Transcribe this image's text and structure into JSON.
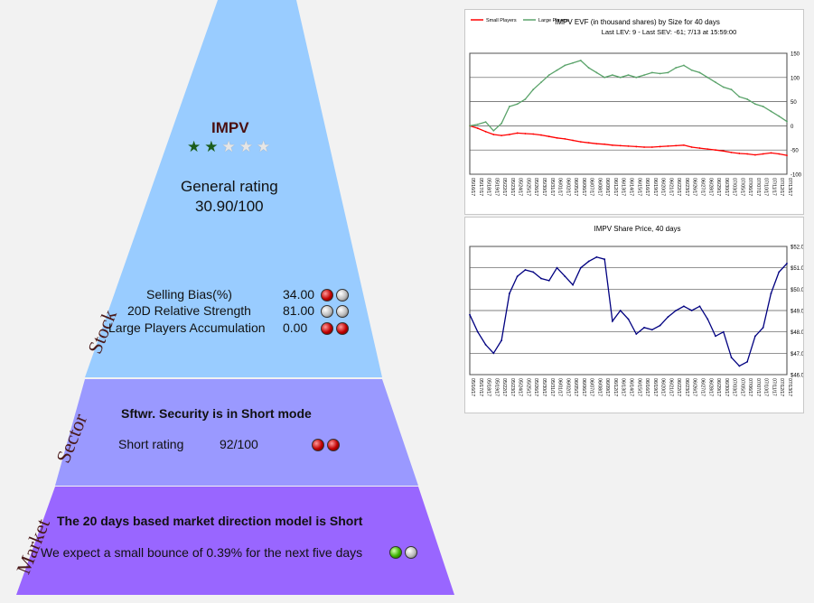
{
  "stock": {
    "ticker": "IMPV",
    "stars": {
      "filled": 2,
      "total": 5
    },
    "general_rating_label": "General rating",
    "general_rating_value": "30.90/100",
    "metrics": [
      {
        "label": "Selling Bias(%)",
        "value": "34.00",
        "balls": [
          "red",
          "grey"
        ]
      },
      {
        "label": "20D Relative Strength",
        "value": "81.00",
        "balls": [
          "grey",
          "grey"
        ]
      },
      {
        "label": "Large Players Accumulation",
        "value": "0.00",
        "balls": [
          "red",
          "red"
        ]
      }
    ]
  },
  "sector": {
    "headline": "Sftwr. Security is in Short mode",
    "short_rating_label": "Short rating",
    "short_rating_value": "92/100",
    "balls": [
      "red",
      "red"
    ]
  },
  "market": {
    "headline": "The 20 days based market direction model is Short",
    "expectation": "We expect a small bounce of 0.39% for the next five days",
    "balls": [
      "green",
      "grey"
    ]
  },
  "side_labels": {
    "stock": "Stock",
    "sector": "Sector",
    "market": "Market"
  },
  "colors": {
    "stock_band": "#99ccff",
    "sector_band": "#9a99ff",
    "market_band": "#9966ff",
    "star_filled": "#1a5c1a",
    "star_empty": "#e6e6e6",
    "small_players": "#ff0000",
    "large_players": "#5aa36a",
    "share_price": "#000080"
  },
  "chart_data": [
    {
      "type": "line",
      "title": "IMPV EVF (in thousand shares) by Size for 40 days",
      "subtitle": "Last LEV: 9 - Last SEV: -61; 7/13 at 15:59:00",
      "legend": [
        "Small Players",
        "Large Players"
      ],
      "legend_position": "top-left",
      "ylim": [
        -100,
        150
      ],
      "yticks": [
        150,
        100,
        50,
        0,
        -50,
        -100
      ],
      "grid": true,
      "x": [
        "05/16/17",
        "05/17/17",
        "05/18/17",
        "05/19/17",
        "05/22/17",
        "05/23/17",
        "05/24/17",
        "05/25/17",
        "05/26/17",
        "05/30/17",
        "05/31/17",
        "06/01/17",
        "06/02/17",
        "06/05/17",
        "06/06/17",
        "06/07/17",
        "06/08/17",
        "06/09/17",
        "06/12/17",
        "06/13/17",
        "06/14/17",
        "06/15/17",
        "06/16/17",
        "06/19/17",
        "06/20/17",
        "06/21/17",
        "06/22/17",
        "06/23/17",
        "06/26/17",
        "06/27/17",
        "06/28/17",
        "06/29/17",
        "06/30/17",
        "07/03/17",
        "07/05/17",
        "07/06/17",
        "07/07/17",
        "07/10/17",
        "07/11/17",
        "07/12/17",
        "07/13/17"
      ],
      "series": [
        {
          "name": "Small Players",
          "values": [
            0,
            -5,
            -12,
            -18,
            -20,
            -18,
            -15,
            -16,
            -17,
            -19,
            -22,
            -25,
            -27,
            -30,
            -33,
            -35,
            -37,
            -38,
            -40,
            -41,
            -42,
            -43,
            -44,
            -44,
            -43,
            -42,
            -41,
            -40,
            -44,
            -46,
            -48,
            -50,
            -52,
            -55,
            -57,
            -58,
            -60,
            -58,
            -56,
            -58,
            -61
          ]
        },
        {
          "name": "Large Players",
          "values": [
            0,
            3,
            8,
            -10,
            5,
            40,
            45,
            55,
            75,
            90,
            105,
            115,
            125,
            130,
            135,
            120,
            110,
            100,
            105,
            100,
            105,
            100,
            105,
            110,
            108,
            110,
            120,
            125,
            115,
            110,
            100,
            90,
            80,
            75,
            60,
            55,
            45,
            40,
            30,
            20,
            9
          ]
        }
      ]
    },
    {
      "type": "line",
      "title": "IMPV Share Price, 40 days",
      "ylim": [
        46.0,
        52.0
      ],
      "yticks": [
        "$52.0",
        "$51.0",
        "$50.0",
        "$49.0",
        "$48.0",
        "$47.0",
        "$46.0"
      ],
      "grid": true,
      "x": [
        "05/16/17",
        "05/17/17",
        "05/18/17",
        "05/19/17",
        "05/22/17",
        "05/23/17",
        "05/24/17",
        "05/25/17",
        "05/26/17",
        "05/30/17",
        "05/31/17",
        "06/01/17",
        "06/02/17",
        "06/05/17",
        "06/06/17",
        "06/07/17",
        "06/08/17",
        "06/09/17",
        "06/12/17",
        "06/13/17",
        "06/14/17",
        "06/15/17",
        "06/16/17",
        "06/19/17",
        "06/20/17",
        "06/21/17",
        "06/22/17",
        "06/23/17",
        "06/26/17",
        "06/27/17",
        "06/28/17",
        "06/29/17",
        "06/30/17",
        "07/03/17",
        "07/05/17",
        "07/06/17",
        "07/07/17",
        "07/10/17",
        "07/11/17",
        "07/12/17",
        "07/13/17"
      ],
      "series": [
        {
          "name": "IMPV",
          "values": [
            48.8,
            48.0,
            47.4,
            47.0,
            47.6,
            49.8,
            50.6,
            50.9,
            50.8,
            50.5,
            50.4,
            51.0,
            50.6,
            50.2,
            51.0,
            51.3,
            51.5,
            51.4,
            48.5,
            49.0,
            48.6,
            47.9,
            48.2,
            48.1,
            48.3,
            48.7,
            49.0,
            49.2,
            49.0,
            49.2,
            48.6,
            47.8,
            48.0,
            46.8,
            46.4,
            46.6,
            47.8,
            48.2,
            49.8,
            50.8,
            51.2
          ]
        }
      ]
    }
  ]
}
